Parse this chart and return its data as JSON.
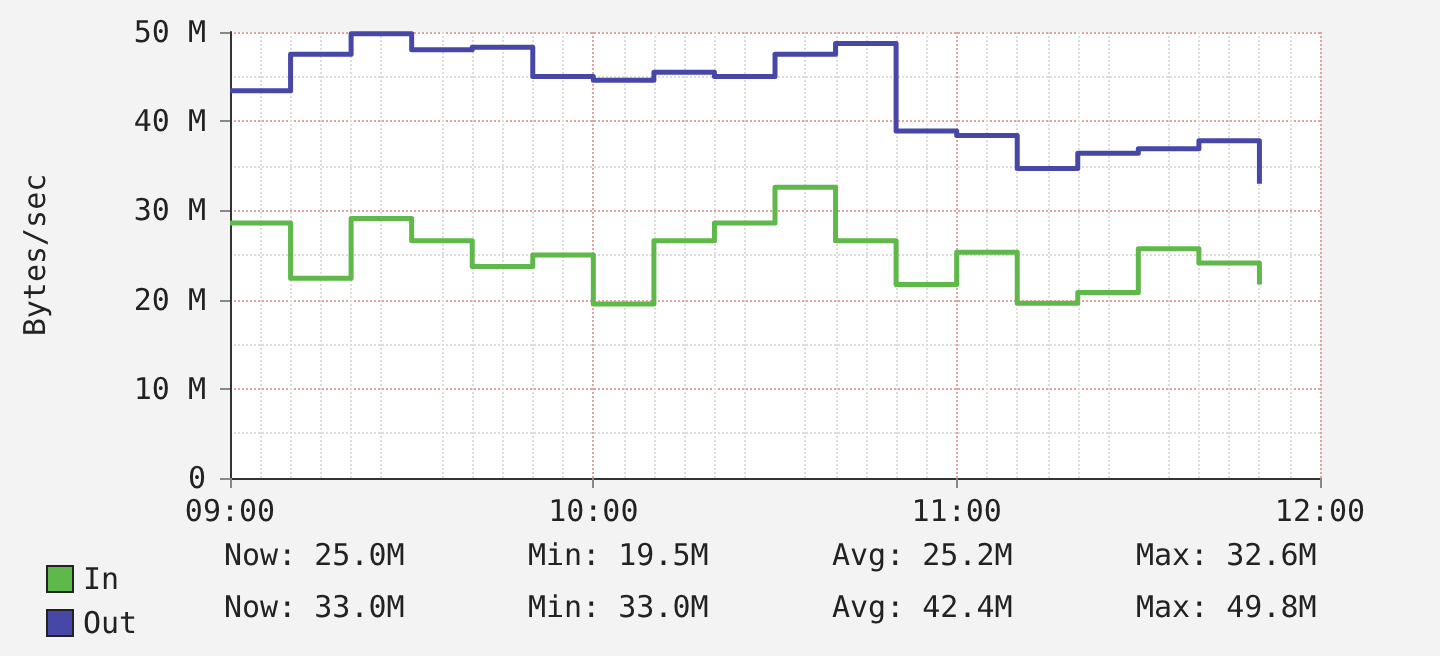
{
  "chart_data": {
    "type": "step",
    "ylabel": "Bytes/sec",
    "x": [
      9,
      9.1667,
      9.3333,
      9.5,
      9.6667,
      9.8333,
      10,
      10.1667,
      10.3333,
      10.5,
      10.6667,
      10.8333,
      11,
      11.1667,
      11.3333,
      11.5,
      11.6667,
      11.8333
    ],
    "series": [
      {
        "name": "In",
        "color": "#5fb84a",
        "values": [
          28.6,
          22.4,
          29.1,
          26.6,
          23.7,
          25.0,
          19.5,
          26.6,
          28.6,
          32.6,
          26.6,
          21.7,
          25.3,
          19.6,
          20.8,
          25.7,
          24.1,
          21.7
        ]
      },
      {
        "name": "Out",
        "color": "#4747a8",
        "values": [
          43.4,
          47.5,
          49.8,
          48.0,
          48.3,
          45.0,
          44.6,
          45.5,
          45.0,
          47.5,
          48.7,
          38.9,
          38.4,
          34.7,
          36.4,
          36.9,
          37.8,
          33.0
        ]
      }
    ],
    "xlim": [
      9,
      12
    ],
    "xticks": [
      {
        "value": 9,
        "label": "09:00"
      },
      {
        "value": 10,
        "label": "10:00"
      },
      {
        "value": 11,
        "label": "11:00"
      },
      {
        "value": 12,
        "label": "12:00"
      }
    ],
    "ylim": [
      0,
      50
    ],
    "yticks": [
      {
        "value": 0,
        "label": "0"
      },
      {
        "value": 10,
        "label": "10 M"
      },
      {
        "value": 20,
        "label": "20 M"
      },
      {
        "value": 30,
        "label": "30 M"
      },
      {
        "value": 40,
        "label": "40 M"
      },
      {
        "value": 50,
        "label": "50 M"
      }
    ],
    "grid": true,
    "legend": "bottom left",
    "line_style": "solid",
    "marker": "none",
    "annotations": [
      "Now: 25.0M",
      "Min: 19.5M",
      "Avg: 25.2M",
      "Max: 32.6M",
      "Now: 33.0M",
      "Min: 33.0M",
      "Avg: 42.4M",
      "Max: 49.8M"
    ]
  }
}
